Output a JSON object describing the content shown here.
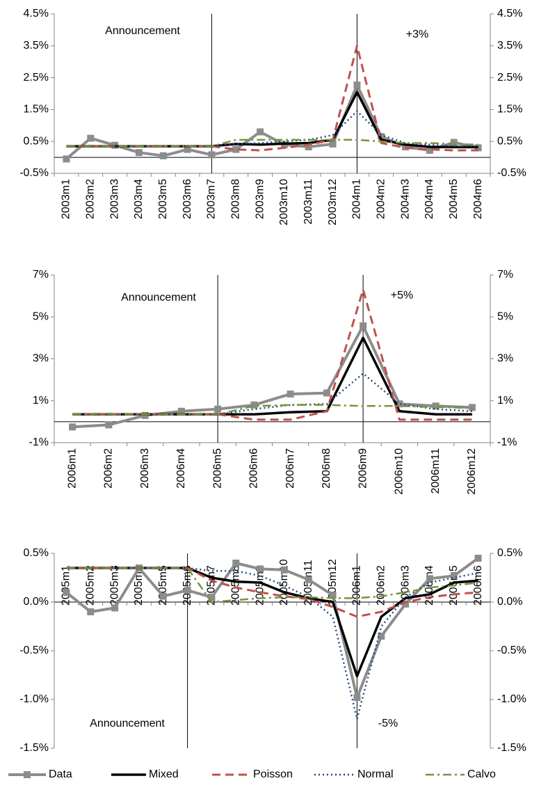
{
  "chart_data": [
    {
      "type": "line",
      "categories": [
        "2003m1",
        "2003m2",
        "2003m3",
        "2003m4",
        "2003m5",
        "2003m6",
        "2003m7",
        "2003m8",
        "2003m9",
        "2003m10",
        "2003m11",
        "2003m12",
        "2004m1",
        "2004m2",
        "2004m3",
        "2004m4",
        "2004m5",
        "2004m6"
      ],
      "series": [
        {
          "color": "#8c8c8c",
          "values": [
            -0.05,
            0.6,
            0.38,
            0.15,
            0.05,
            0.25,
            0.08,
            0.25,
            0.8,
            0.4,
            0.33,
            0.42,
            2.27,
            0.65,
            0.33,
            0.22,
            0.47,
            0.3
          ]
        },
        {
          "color": "#000000",
          "values": [
            0.35,
            0.35,
            0.35,
            0.35,
            0.35,
            0.35,
            0.35,
            0.42,
            0.4,
            0.43,
            0.45,
            0.55,
            2.05,
            0.55,
            0.4,
            0.33,
            0.32,
            0.32
          ]
        },
        {
          "color": "#c0504d",
          "values": [
            0.35,
            0.35,
            0.35,
            0.35,
            0.35,
            0.35,
            0.35,
            0.25,
            0.22,
            0.3,
            0.4,
            0.55,
            3.5,
            0.45,
            0.3,
            0.25,
            0.22,
            0.22
          ]
        },
        {
          "color": "#1f497d",
          "values": [
            0.35,
            0.35,
            0.35,
            0.35,
            0.35,
            0.35,
            0.35,
            0.42,
            0.45,
            0.5,
            0.55,
            0.7,
            1.45,
            0.7,
            0.45,
            0.4,
            0.35,
            0.35
          ]
        },
        {
          "color": "#77933c",
          "values": [
            0.35,
            0.35,
            0.35,
            0.35,
            0.35,
            0.35,
            0.35,
            0.55,
            0.55,
            0.55,
            0.55,
            0.55,
            0.55,
            0.5,
            0.45,
            0.45,
            0.42,
            0.4
          ]
        }
      ],
      "ylim": [
        -0.5,
        4.5
      ],
      "yticks": [
        {
          "value": -0.5,
          "label": "-0.5%"
        },
        {
          "value": 0.5,
          "label": "0.5%"
        },
        {
          "value": 1.5,
          "label": "1.5%"
        },
        {
          "value": 2.5,
          "label": "2.5%"
        },
        {
          "value": 3.5,
          "label": "3.5%"
        },
        {
          "value": 4.5,
          "label": "4.5%"
        }
      ],
      "y2lim": [
        -0.5,
        4.5
      ],
      "y2ticks": [
        {
          "value": -0.5,
          "label": "-0.5%"
        },
        {
          "value": 0.5,
          "label": "0.5%"
        },
        {
          "value": 1.5,
          "label": "1.5%"
        },
        {
          "value": 2.5,
          "label": "2.5%"
        },
        {
          "value": 3.5,
          "label": "3.5%"
        },
        {
          "value": 4.5,
          "label": "4.5%"
        }
      ],
      "vlines": [
        "2003m7",
        "2004m1"
      ],
      "annotations": [
        "Announcement",
        "+3%"
      ]
    },
    {
      "type": "line",
      "categories": [
        "2006m1",
        "2006m2",
        "2006m3",
        "2006m4",
        "2006m5",
        "2006m6",
        "2006m7",
        "2006m8",
        "2006m9",
        "2006m10",
        "2006m11",
        "2006m12"
      ],
      "series": [
        {
          "color": "#8c8c8c",
          "values": [
            -0.25,
            -0.15,
            0.3,
            0.5,
            0.6,
            0.8,
            1.32,
            1.37,
            4.57,
            0.85,
            0.75,
            0.68
          ]
        },
        {
          "color": "#000000",
          "values": [
            0.35,
            0.35,
            0.35,
            0.35,
            0.35,
            0.35,
            0.45,
            0.5,
            4.0,
            0.5,
            0.35,
            0.35
          ]
        },
        {
          "color": "#c0504d",
          "values": [
            0.35,
            0.35,
            0.35,
            0.35,
            0.35,
            0.1,
            0.1,
            0.5,
            6.3,
            0.1,
            0.1,
            0.1
          ]
        },
        {
          "color": "#1f497d",
          "values": [
            0.35,
            0.35,
            0.35,
            0.35,
            0.35,
            0.6,
            0.8,
            0.85,
            2.3,
            0.85,
            0.6,
            0.5
          ]
        },
        {
          "color": "#77933c",
          "values": [
            0.35,
            0.35,
            0.35,
            0.35,
            0.35,
            0.75,
            0.8,
            0.8,
            0.75,
            0.75,
            0.7,
            0.65
          ]
        }
      ],
      "ylim": [
        -1,
        7
      ],
      "yticks": [
        {
          "value": -1,
          "label": "-1%"
        },
        {
          "value": 1,
          "label": "1%"
        },
        {
          "value": 3,
          "label": "3%"
        },
        {
          "value": 5,
          "label": "5%"
        },
        {
          "value": 7,
          "label": "7%"
        }
      ],
      "y2lim": [
        -1,
        7
      ],
      "y2ticks": [
        {
          "value": -1,
          "label": "-1%"
        },
        {
          "value": 1,
          "label": "1%"
        },
        {
          "value": 3,
          "label": "3%"
        },
        {
          "value": 5,
          "label": "5%"
        },
        {
          "value": 7,
          "label": "7%"
        }
      ],
      "vlines": [
        "2006m5",
        "2006m9"
      ],
      "annotations": [
        "Announcement",
        "+5%"
      ]
    },
    {
      "type": "line",
      "categories": [
        "2005m1",
        "2005m2",
        "2005m3",
        "2005m4",
        "2005m5",
        "2005m6",
        "2005m7",
        "2005m8",
        "2005m9",
        "2005m10",
        "2005m11",
        "2005m12",
        "2006m1",
        "2006m2",
        "2006m3",
        "2006m4",
        "2006m5",
        "2006m6"
      ],
      "series": [
        {
          "name": "Data",
          "color": "#8c8c8c",
          "values": [
            0.1,
            -0.1,
            -0.06,
            0.35,
            0.06,
            0.12,
            0.05,
            0.4,
            0.34,
            0.33,
            0.23,
            0.07,
            -0.98,
            -0.35,
            -0.02,
            0.24,
            0.27,
            0.45
          ]
        },
        {
          "name": "Mixed",
          "color": "#000000",
          "values": [
            0.35,
            0.35,
            0.35,
            0.35,
            0.35,
            0.35,
            0.25,
            0.21,
            0.2,
            0.1,
            0.04,
            0.0,
            -0.76,
            -0.15,
            0.04,
            0.08,
            0.2,
            0.22
          ]
        },
        {
          "name": "Poisson",
          "color": "#c0504d",
          "values": [
            0.35,
            0.35,
            0.35,
            0.35,
            0.35,
            0.35,
            0.22,
            0.15,
            0.1,
            0.06,
            0.03,
            -0.05,
            -0.15,
            -0.1,
            0.0,
            0.05,
            0.08,
            0.1
          ]
        },
        {
          "name": "Normal",
          "color": "#1f497d",
          "values": [
            0.35,
            0.35,
            0.35,
            0.35,
            0.35,
            0.35,
            0.32,
            0.32,
            0.27,
            0.17,
            0.05,
            -0.15,
            -1.2,
            -0.25,
            0.05,
            0.2,
            0.25,
            0.3
          ]
        },
        {
          "name": "Calvo",
          "color": "#77933c",
          "values": [
            0.35,
            0.35,
            0.35,
            0.35,
            0.35,
            0.35,
            0.0,
            0.02,
            0.04,
            0.05,
            0.05,
            0.04,
            0.04,
            0.06,
            0.1,
            0.15,
            0.17,
            0.2
          ]
        }
      ],
      "ylim": [
        -1.5,
        0.5
      ],
      "yticks": [
        {
          "value": -1.5,
          "label": "-1.5%"
        },
        {
          "value": -1.0,
          "label": "-1.0%"
        },
        {
          "value": -0.5,
          "label": "-0.5%"
        },
        {
          "value": 0.0,
          "label": "0.0%"
        },
        {
          "value": 0.5,
          "label": "0.5%"
        }
      ],
      "y2lim": [
        -1.5,
        0.5
      ],
      "y2ticks": [
        {
          "value": -1.5,
          "label": "-1.5%"
        },
        {
          "value": -1.0,
          "label": "-1.0%"
        },
        {
          "value": -0.5,
          "label": "-0.5%"
        },
        {
          "value": 0.0,
          "label": "0.0%"
        },
        {
          "value": 0.5,
          "label": "0.5%"
        }
      ],
      "vlines": [
        "2005m6",
        "2006m1"
      ],
      "annotations": [
        "Announcement",
        "-5%"
      ]
    }
  ]
}
